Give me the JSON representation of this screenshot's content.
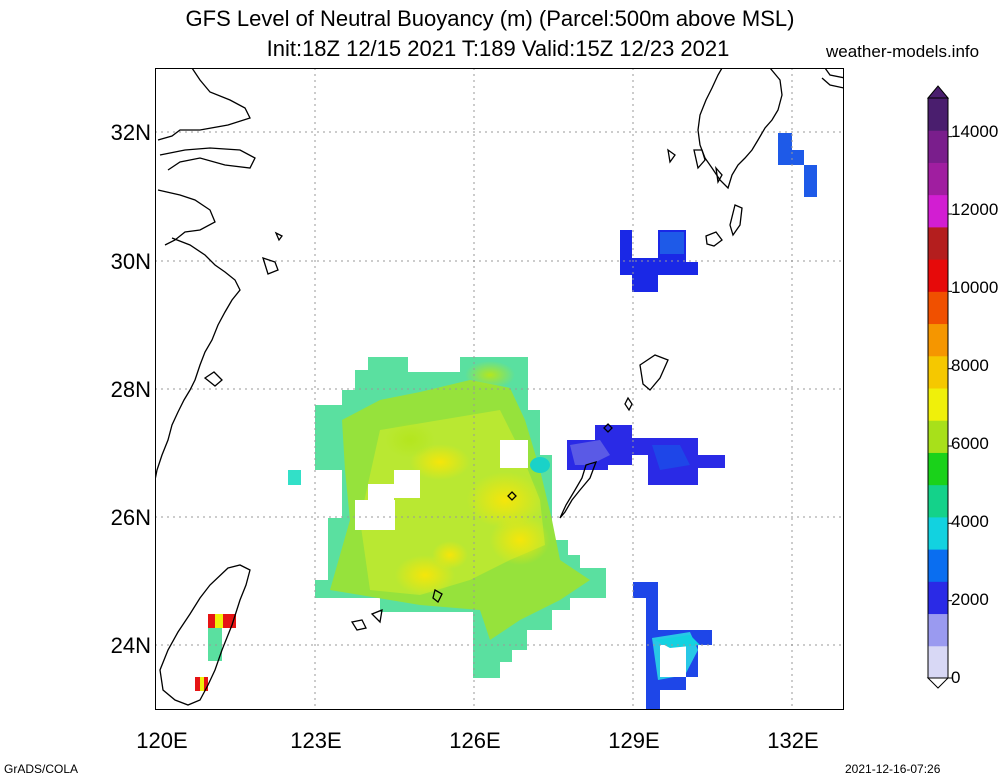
{
  "title": {
    "line1": "GFS Level of Neutral Buoyancy (m) (Parcel:500m above MSL)",
    "line2": "Init:18Z 12/15 2021 T:189 Valid:15Z 12/23 2021"
  },
  "credit": "weather-models.info",
  "footer": {
    "left": "GrADS/COLA",
    "right": "2021-12-16-07:26"
  },
  "map": {
    "lon_range": [
      120,
      133
    ],
    "lat_range": [
      23,
      33
    ],
    "x_ticks": [
      "120E",
      "123E",
      "126E",
      "129E",
      "132E"
    ],
    "y_ticks": [
      "32N",
      "30N",
      "28N",
      "26N",
      "24N"
    ],
    "grid": "dotted"
  },
  "colorbar": {
    "min": 0,
    "max": 15000,
    "labels": [
      "14000",
      "12000",
      "10000",
      "8000",
      "6000",
      "4000",
      "2000",
      "0"
    ],
    "colors": [
      "#d8d8f5",
      "#9a9af0",
      "#2a2ae6",
      "#0a6ef0",
      "#12d2e0",
      "#14d28a",
      "#1ad21a",
      "#a8e01a",
      "#f0f00a",
      "#f5c800",
      "#f59600",
      "#f05000",
      "#e60a0a",
      "#b41e1e",
      "#d21ed2",
      "#a01ea0",
      "#7a1e8c",
      "#4a1e6e"
    ]
  }
}
